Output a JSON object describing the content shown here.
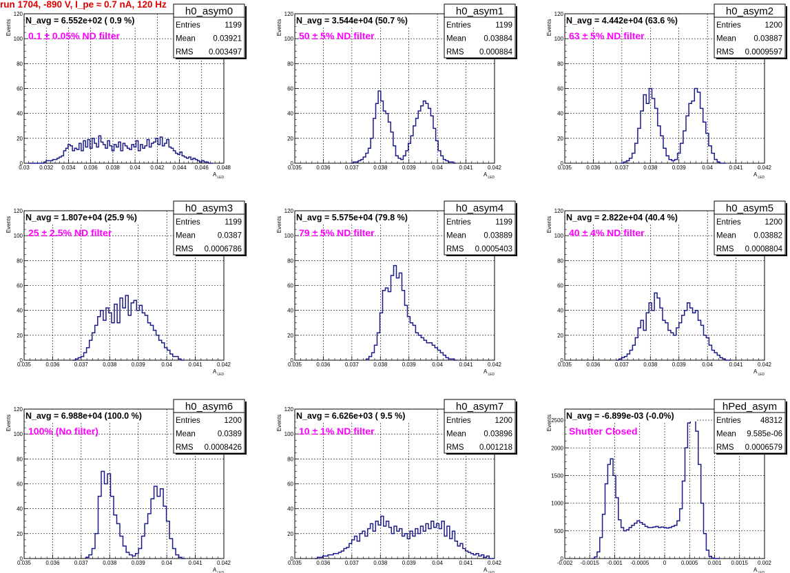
{
  "header": {
    "run_title": "run 1704,  -890 V, I_pe ≈ 0.7 nA, 120 Hz"
  },
  "colors": {
    "histogram_line": "#1a1a8a",
    "title": "#e00000",
    "note": "#ff00ff",
    "grid": "#000000"
  },
  "chart_data": [
    {
      "type": "bar",
      "name": "h0_asym0",
      "avg_text": "N_avg = 6.552e+02 ( 0.9 %)",
      "note": "0.1 ± 0.05% ND filter",
      "stats": {
        "Entries": "1199",
        "Mean": "0.03921",
        "RMS": "0.003497"
      },
      "xlabel": "A",
      "xlabel_sub": "LED",
      "ylabel": "Events",
      "xlim": [
        0.03,
        0.048
      ],
      "ylim": [
        0,
        120
      ],
      "xticks": [
        "0.03",
        "0.032",
        "0.034",
        "0.036",
        "0.038",
        "0.04",
        "0.042",
        "0.044",
        "0.046",
        "0.048"
      ],
      "yticks": [
        "0",
        "20",
        "40",
        "60",
        "80",
        "100",
        "120"
      ],
      "grid": true,
      "stats_box": "top-right",
      "bin_edges": [
        0.0304,
        0.047
      ],
      "values": [
        0,
        0,
        0,
        0,
        0,
        0,
        0,
        1,
        2,
        2,
        2,
        3,
        3,
        4,
        5,
        6,
        10,
        12,
        15,
        14,
        10,
        12,
        11,
        16,
        10,
        18,
        13,
        19,
        12,
        20,
        16,
        13,
        22,
        17,
        15,
        12,
        18,
        14,
        10,
        15,
        13,
        17,
        10,
        16,
        14,
        12,
        11,
        15,
        13,
        18,
        10,
        15,
        12,
        14,
        19,
        13,
        16,
        17,
        20,
        15,
        21,
        14,
        16,
        19,
        13,
        12,
        10,
        8,
        7,
        9,
        6,
        5,
        4,
        5,
        3,
        4,
        3,
        2,
        1,
        2,
        1,
        1,
        0,
        0
      ]
    },
    {
      "type": "bar",
      "name": "h0_asym1",
      "avg_text": "N_avg = 3.544e+04 (50.7 %)",
      "note": "50 ± 5% ND filter",
      "stats": {
        "Entries": "1199",
        "Mean": "0.03884",
        "RMS": "0.000884"
      },
      "xlabel": "A",
      "xlabel_sub": "LED",
      "ylabel": "Events",
      "xlim": [
        0.035,
        0.042
      ],
      "ylim": [
        0,
        120
      ],
      "xticks": [
        "0.035",
        "0.036",
        "0.037",
        "0.038",
        "0.039",
        "0.04",
        "0.041",
        "0.042"
      ],
      "yticks": [
        "0",
        "20",
        "40",
        "60",
        "80",
        "100",
        "120"
      ],
      "grid": true,
      "stats_box": "top-right",
      "bin_edges": [
        0.03696,
        0.04064
      ],
      "values": [
        0,
        1,
        1,
        2,
        3,
        5,
        8,
        12,
        20,
        36,
        48,
        58,
        50,
        42,
        40,
        33,
        25,
        14,
        6,
        4,
        3,
        6,
        10,
        16,
        22,
        30,
        36,
        42,
        46,
        50,
        48,
        44,
        38,
        28,
        18,
        10,
        6,
        3,
        2,
        1,
        1,
        0
      ]
    },
    {
      "type": "bar",
      "name": "h0_asym2",
      "avg_text": "N_avg = 4.442e+04 (63.6 %)",
      "note": "63 ± 5% ND filter",
      "stats": {
        "Entries": "1200",
        "Mean": "0.03887",
        "RMS": "0.0009597"
      },
      "xlabel": "A",
      "xlabel_sub": "LED",
      "ylabel": "Events",
      "xlim": [
        0.035,
        0.042
      ],
      "ylim": [
        0,
        120
      ],
      "xticks": [
        "0.035",
        "0.036",
        "0.037",
        "0.038",
        "0.039",
        "0.04",
        "0.041",
        "0.042"
      ],
      "yticks": [
        "0",
        "20",
        "40",
        "60",
        "80",
        "100",
        "120"
      ],
      "grid": true,
      "stats_box": "top-right",
      "bin_edges": [
        0.03696,
        0.04064
      ],
      "values": [
        0,
        1,
        2,
        4,
        8,
        16,
        28,
        42,
        55,
        48,
        60,
        52,
        44,
        30,
        22,
        12,
        6,
        3,
        2,
        3,
        8,
        16,
        26,
        38,
        48,
        50,
        60,
        57,
        44,
        33,
        24,
        14,
        8,
        3,
        1,
        0,
        0
      ]
    },
    {
      "type": "bar",
      "name": "h0_asym3",
      "avg_text": "N_avg = 1.807e+04 (25.9 %)",
      "note": "25 ± 2.5% ND filter",
      "stats": {
        "Entries": "1199",
        "Mean": "0.0387",
        "RMS": "0.0006786"
      },
      "xlabel": "A",
      "xlabel_sub": "LED",
      "ylabel": "Events",
      "xlim": [
        0.035,
        0.042
      ],
      "ylim": [
        0,
        120
      ],
      "xticks": [
        "0.035",
        "0.036",
        "0.037",
        "0.038",
        "0.039",
        "0.04",
        "0.041",
        "0.042"
      ],
      "yticks": [
        "0",
        "20",
        "40",
        "60",
        "80",
        "100",
        "120"
      ],
      "grid": true,
      "stats_box": "top-right",
      "bin_edges": [
        0.0367,
        0.0406
      ],
      "values": [
        0,
        1,
        2,
        3,
        6,
        10,
        16,
        22,
        28,
        35,
        40,
        32,
        42,
        38,
        30,
        45,
        30,
        50,
        42,
        52,
        36,
        46,
        48,
        40,
        44,
        38,
        36,
        30,
        28,
        24,
        20,
        16,
        14,
        10,
        8,
        5,
        3,
        3,
        1,
        0
      ]
    },
    {
      "type": "bar",
      "name": "h0_asym4",
      "avg_text": "N_avg = 5.575e+04 (79.8 %)",
      "note": "79 ± 5% ND filter",
      "stats": {
        "Entries": "1199",
        "Mean": "0.03889",
        "RMS": "0.0005403"
      },
      "xlabel": "A",
      "xlabel_sub": "LED",
      "ylabel": "Events",
      "xlim": [
        0.035,
        0.042
      ],
      "ylim": [
        0,
        120
      ],
      "xticks": [
        "0.035",
        "0.036",
        "0.037",
        "0.038",
        "0.039",
        "0.04",
        "0.041",
        "0.042"
      ],
      "yticks": [
        "0",
        "20",
        "40",
        "60",
        "80",
        "100",
        "120"
      ],
      "grid": true,
      "stats_box": "top-right",
      "bin_edges": [
        0.0375,
        0.04068
      ],
      "values": [
        1,
        3,
        6,
        12,
        22,
        38,
        56,
        58,
        55,
        68,
        76,
        66,
        70,
        56,
        44,
        35,
        30,
        28,
        22,
        20,
        18,
        16,
        14,
        14,
        12,
        10,
        8,
        6,
        4,
        2,
        1,
        1,
        0
      ]
    },
    {
      "type": "bar",
      "name": "h0_asym5",
      "avg_text": "N_avg = 2.822e+04 (40.4 %)",
      "note": "40 ± 4% ND filter",
      "stats": {
        "Entries": "1200",
        "Mean": "0.03882",
        "RMS": "0.0008804"
      },
      "xlabel": "A",
      "xlabel_sub": "LED",
      "ylabel": "Events",
      "xlim": [
        0.035,
        0.042
      ],
      "ylim": [
        0,
        120
      ],
      "xticks": [
        "0.035",
        "0.036",
        "0.037",
        "0.038",
        "0.039",
        "0.04",
        "0.041",
        "0.042"
      ],
      "yticks": [
        "0",
        "20",
        "40",
        "60",
        "80",
        "100",
        "120"
      ],
      "grid": true,
      "stats_box": "top-right",
      "bin_edges": [
        0.0368,
        0.04082
      ],
      "values": [
        0,
        1,
        2,
        3,
        5,
        8,
        12,
        18,
        26,
        32,
        24,
        38,
        46,
        40,
        54,
        50,
        42,
        32,
        30,
        24,
        22,
        20,
        26,
        30,
        36,
        40,
        46,
        42,
        38,
        40,
        32,
        28,
        20,
        18,
        12,
        8,
        6,
        4,
        2,
        1,
        0,
        0
      ]
    },
    {
      "type": "bar",
      "name": "h0_asym6",
      "avg_text": "N_avg = 6.988e+04 (100.0 %)",
      "note": "100% (No filter)",
      "stats": {
        "Entries": "1200",
        "Mean": "0.0389",
        "RMS": "0.0008426"
      },
      "xlabel": "A",
      "xlabel_sub": "LED",
      "ylabel": "Events",
      "xlim": [
        0.035,
        0.042
      ],
      "ylim": [
        0,
        120
      ],
      "xticks": [
        "0.035",
        "0.036",
        "0.037",
        "0.038",
        "0.039",
        "0.04",
        "0.041",
        "0.042"
      ],
      "yticks": [
        "0",
        "20",
        "40",
        "60",
        "80",
        "100",
        "120"
      ],
      "grid": true,
      "stats_box": "top-right",
      "bin_edges": [
        0.03716,
        0.04064
      ],
      "values": [
        1,
        3,
        8,
        20,
        50,
        70,
        60,
        68,
        50,
        35,
        28,
        18,
        10,
        5,
        3,
        2,
        4,
        8,
        18,
        28,
        36,
        48,
        58,
        50,
        56,
        42,
        30,
        16,
        8,
        3,
        1,
        0
      ]
    },
    {
      "type": "bar",
      "name": "h0_asym7",
      "avg_text": "N_avg = 6.626e+03 ( 9.5 %)",
      "note": "10 ± 1% ND filter",
      "stats": {
        "Entries": "1200",
        "Mean": "0.03896",
        "RMS": "0.001218"
      },
      "xlabel": "A",
      "xlabel_sub": "LED",
      "ylabel": "Events",
      "xlim": [
        0.035,
        0.042
      ],
      "ylim": [
        0,
        120
      ],
      "xticks": [
        "0.035",
        "0.036",
        "0.037",
        "0.038",
        "0.039",
        "0.04",
        "0.041",
        "0.042"
      ],
      "yticks": [
        "0",
        "20",
        "40",
        "60",
        "80",
        "100",
        "120"
      ],
      "grid": true,
      "stats_box": "top-right",
      "bin_edges": [
        0.0357,
        0.042
      ],
      "values": [
        0,
        1,
        1,
        2,
        2,
        3,
        3,
        4,
        4,
        5,
        6,
        8,
        9,
        12,
        15,
        18,
        14,
        20,
        22,
        18,
        24,
        28,
        22,
        30,
        27,
        34,
        26,
        30,
        25,
        20,
        26,
        22,
        24,
        18,
        20,
        16,
        22,
        18,
        24,
        20,
        26,
        22,
        28,
        24,
        30,
        25,
        28,
        24,
        30,
        18,
        26,
        16,
        22,
        14,
        10,
        12,
        8,
        6,
        5,
        4,
        3,
        4,
        2,
        3,
        1,
        2,
        0,
        0
      ]
    },
    {
      "type": "bar",
      "name": "hPed_asym",
      "avg_text": "N_avg = -6.899e-03 (-0.0%)",
      "note": "Shutter Closed",
      "stats": {
        "Entries": "48312",
        "Mean": "9.585e-06",
        "RMS": "0.0006579"
      },
      "xlabel": "A",
      "xlabel_sub": "LED",
      "ylabel": "Events",
      "xlim": [
        -0.002,
        0.002
      ],
      "ylim": [
        0,
        2700
      ],
      "xticks": [
        "-0.002",
        "-0.0015",
        "-0.001",
        "-0.0005",
        "0",
        "0.0005",
        "0.001",
        "0.0015",
        "0.002"
      ],
      "yticks": [
        "0",
        "500",
        "1000",
        "1500",
        "2000",
        "2500"
      ],
      "grid": true,
      "stats_box": "top-right",
      "bin_edges": [
        -0.00146,
        0.0011
      ],
      "values": [
        0,
        30,
        120,
        380,
        800,
        1350,
        1700,
        1800,
        1500,
        1100,
        700,
        560,
        500,
        520,
        560,
        600,
        640,
        680,
        650,
        620,
        580,
        560,
        560,
        570,
        580,
        560,
        570,
        560,
        550,
        560,
        580,
        600,
        680,
        900,
        1400,
        2000,
        2450,
        2600,
        2550,
        2300,
        1700,
        1000,
        450,
        150,
        40,
        10,
        0,
        0
      ]
    }
  ]
}
